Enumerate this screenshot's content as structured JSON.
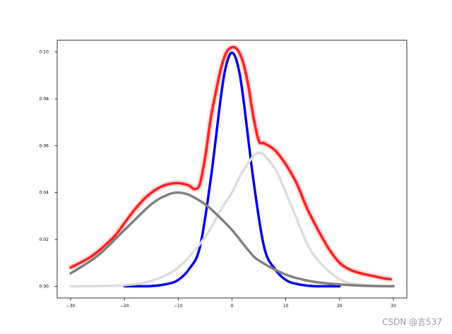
{
  "watermark": "CSDN @言537",
  "chart_data": {
    "type": "line",
    "xlim": [
      -32.5,
      32.5
    ],
    "ylim": [
      -0.005,
      0.105
    ],
    "x_ticks": [
      -30,
      -20,
      -10,
      0,
      10,
      20,
      30
    ],
    "x_tick_labels": [
      "−30",
      "−20",
      "−10",
      "0",
      "10",
      "20",
      "30"
    ],
    "y_ticks": [
      0.0,
      0.02,
      0.04,
      0.06,
      0.08,
      0.1
    ],
    "y_tick_labels": [
      "0.00",
      "0.02",
      "0.04",
      "0.06",
      "0.08",
      "0.10"
    ],
    "grid": false,
    "series": [
      {
        "color": "#ff2222",
        "glow": true,
        "x": [
          -30,
          -26,
          -22,
          -20,
          -18,
          -16,
          -14,
          -12,
          -10,
          -8,
          -7,
          -6,
          -5,
          -4,
          -3,
          -2,
          -1,
          0,
          1,
          2,
          3,
          4,
          5,
          6,
          8,
          10,
          12,
          14,
          16,
          18,
          20,
          22,
          24,
          26,
          28,
          29.5
        ],
        "y": [
          0.008,
          0.013,
          0.021,
          0.027,
          0.033,
          0.038,
          0.0415,
          0.0435,
          0.044,
          0.043,
          0.0415,
          0.0435,
          0.055,
          0.071,
          0.083,
          0.0935,
          0.1,
          0.102,
          0.101,
          0.096,
          0.086,
          0.072,
          0.062,
          0.061,
          0.058,
          0.052,
          0.044,
          0.033,
          0.024,
          0.016,
          0.01,
          0.007,
          0.0055,
          0.0045,
          0.0035,
          0.003
        ]
      },
      {
        "color": "#0000ee",
        "x": [
          -20,
          -15,
          -12,
          -10,
          -8,
          -6,
          -4,
          -2,
          -1,
          0,
          1,
          2,
          4,
          6,
          8,
          10,
          12,
          15,
          20
        ],
        "y": [
          0.0,
          0.0001,
          0.001,
          0.0027,
          0.0073,
          0.0165,
          0.045,
          0.082,
          0.095,
          0.0997,
          0.095,
          0.082,
          0.045,
          0.0165,
          0.0073,
          0.0027,
          0.001,
          0.0001,
          0.0
        ]
      },
      {
        "color": "#dddddd",
        "x": [
          -30,
          -25,
          -20,
          -15,
          -10,
          -5,
          -2,
          0,
          2,
          5,
          8,
          10,
          12,
          15,
          20,
          25,
          30
        ],
        "y": [
          0.0,
          0.0001,
          0.0005,
          0.0023,
          0.008,
          0.021,
          0.033,
          0.04,
          0.049,
          0.057,
          0.05,
          0.04,
          0.029,
          0.014,
          0.003,
          0.0005,
          0.0001
        ]
      },
      {
        "color": "#808080",
        "x": [
          -30,
          -25,
          -20,
          -15,
          -12,
          -10,
          -8,
          -5,
          -3,
          0,
          3,
          5,
          10,
          15,
          20,
          25,
          30
        ],
        "y": [
          0.0055,
          0.013,
          0.024,
          0.035,
          0.039,
          0.04,
          0.039,
          0.035,
          0.031,
          0.024,
          0.0155,
          0.011,
          0.005,
          0.002,
          0.0008,
          0.0002,
          0.0
        ]
      }
    ]
  }
}
